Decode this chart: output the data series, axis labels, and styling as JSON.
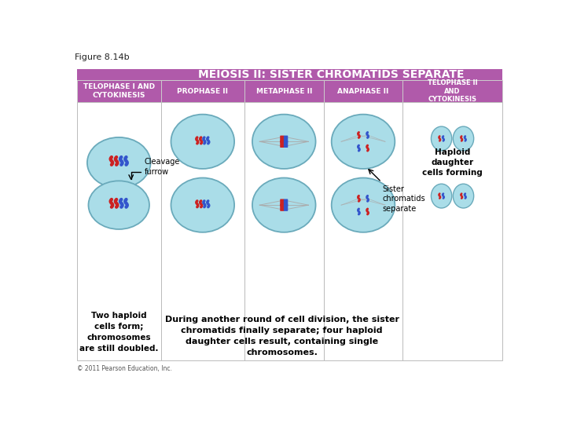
{
  "figure_label": "Figure 8.14b",
  "main_title": "MEIOSIS II: SISTER CHROMATIDS SEPARATE",
  "main_title_bg": "#b05aaa",
  "main_title_fg": "#ffffff",
  "col_headers": [
    "TELOPHASE I AND\nCYTOKINESIS",
    "PROPHASE II",
    "METAPHASE II",
    "ANAPHASE II",
    "TELOPHASE II\nAND\nCYTOKINESIS"
  ],
  "col_header_bg": "#b05aaa",
  "col_header_fg": "#ffffff",
  "panel_bg": "#ffffff",
  "panel_border": "#bbbbbb",
  "outer_bg": "#ffffff",
  "left_panel_note1": "Cleavage\nfurrow",
  "left_panel_note2": "Two haploid\ncells form;\nchromosomes\nare still doubled.",
  "anaphase_note": "Sister\nchromatids\nseparate",
  "telophase2_note": "Haploid\ndaughter\ncells forming",
  "bottom_text": "During another round of cell division, the sister\nchromatids finally separate; four haploid\ndaughter cells result, containing single\nchromosomes.",
  "copyright": "© 2011 Pearson Education, Inc.",
  "cell_color": "#aadde8",
  "cell_border": "#6aaabb",
  "chrom_red": "#cc2222",
  "chrom_blue": "#3355cc"
}
